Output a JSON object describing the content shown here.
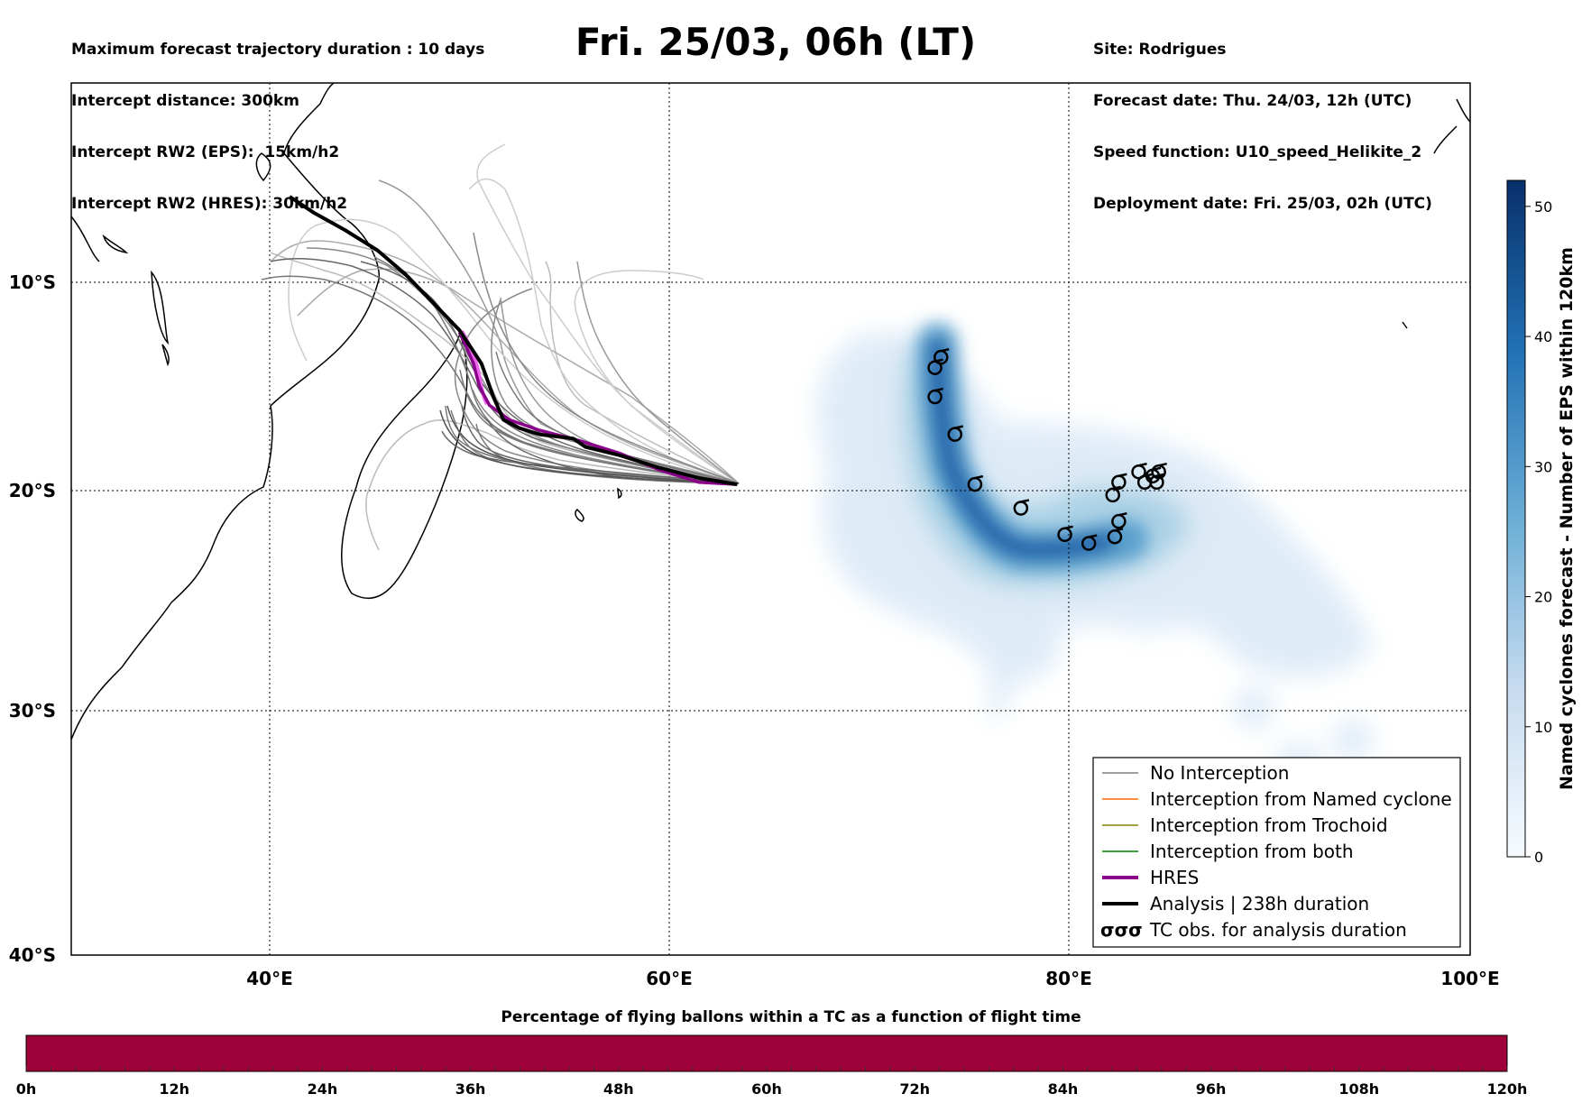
{
  "header_left": [
    "Maximum forecast trajectory duration : 10 days",
    "Intercept distance: 300km",
    "Intercept RW2 (EPS):  15km/h2",
    "Intercept RW2 (HRES): 30km/h2"
  ],
  "header_right": [
    "Site: Rodrigues",
    "Forecast date: Thu. 24/03, 12h (UTC)",
    "Speed function: U10_speed_Helikite_2",
    "Deployment date: Fri. 25/03, 02h (UTC)"
  ],
  "title": "Fri. 25/03, 06h (LT)",
  "map": {
    "lon_range": [
      30,
      100
    ],
    "lat_range": [
      -40,
      0
    ],
    "lon_ticks": [
      "40°E",
      "60°E",
      "80°E",
      "100°E"
    ],
    "lat_ticks": [
      "10°S",
      "20°S",
      "30°S",
      "40°S"
    ],
    "grid": true,
    "site": {
      "name": "Rodrigues",
      "lon": 63.4,
      "lat": -19.7
    },
    "tc_obs_points": [
      {
        "lon": 73.6,
        "lat": -13.6
      },
      {
        "lon": 73.3,
        "lat": -14.1
      },
      {
        "lon": 73.3,
        "lat": -15.5
      },
      {
        "lon": 74.3,
        "lat": -17.3
      },
      {
        "lon": 75.3,
        "lat": -19.7
      },
      {
        "lon": 77.6,
        "lat": -20.8
      },
      {
        "lon": 79.8,
        "lat": -22.0
      },
      {
        "lon": 81.0,
        "lat": -22.4
      },
      {
        "lon": 82.3,
        "lat": -22.1
      },
      {
        "lon": 82.5,
        "lat": -21.4
      },
      {
        "lon": 82.2,
        "lat": -20.2
      },
      {
        "lon": 82.5,
        "lat": -19.6
      },
      {
        "lon": 83.5,
        "lat": -19.1
      },
      {
        "lon": 83.8,
        "lat": -19.6
      },
      {
        "lon": 84.2,
        "lat": -19.3
      },
      {
        "lon": 84.5,
        "lat": -19.1
      },
      {
        "lon": 84.4,
        "lat": -19.6
      }
    ],
    "analysis_track": [
      [
        63.4,
        -19.7
      ],
      [
        61.5,
        -19.4
      ],
      [
        59.5,
        -18.9
      ],
      [
        57.5,
        -18.3
      ],
      [
        55.8,
        -17.9
      ],
      [
        55.2,
        -17.5
      ],
      [
        53.5,
        -17.3
      ],
      [
        52.5,
        -17.0
      ],
      [
        51.7,
        -16.6
      ],
      [
        51.2,
        -15.5
      ],
      [
        50.6,
        -13.9
      ],
      [
        49.5,
        -12.3
      ],
      [
        48.2,
        -11.0
      ],
      [
        46.8,
        -9.6
      ],
      [
        45.4,
        -8.4
      ],
      [
        43.8,
        -7.4
      ],
      [
        42.2,
        -6.5
      ],
      [
        41.0,
        -5.7
      ]
    ],
    "hres_track": [
      [
        63.4,
        -19.7
      ],
      [
        61.5,
        -19.6
      ],
      [
        59.5,
        -19.0
      ],
      [
        57.5,
        -18.2
      ],
      [
        55.5,
        -17.6
      ],
      [
        53.5,
        -17.1
      ],
      [
        52.0,
        -16.6
      ],
      [
        51.0,
        -15.9
      ],
      [
        50.5,
        -15.0
      ],
      [
        50.2,
        -13.9
      ],
      [
        49.8,
        -13.0
      ],
      [
        49.5,
        -12.4
      ]
    ]
  },
  "colorbar": {
    "label": "Named cyclones forecast - Number of EPS within 120km",
    "range": [
      0,
      52
    ],
    "ticks": [
      "0",
      "10",
      "20",
      "30",
      "40",
      "50"
    ]
  },
  "legend": {
    "placement": "lower-right",
    "entries": [
      {
        "label": "No Interception",
        "color": "#808080"
      },
      {
        "label": "Interception from Named cyclone",
        "color": "#ff6600"
      },
      {
        "label": "Interception from Trochoid",
        "color": "#808000"
      },
      {
        "label": "Interception from both",
        "color": "#008000"
      },
      {
        "label": "HRES",
        "color": "#8b008b"
      },
      {
        "label": "Analysis | 238h duration",
        "color": "#000000"
      },
      {
        "label": "TC obs. for analysis duration",
        "color": "#000000",
        "glyph": "σσσ"
      }
    ]
  },
  "time_bar": {
    "title": "Percentage of flying ballons within a TC as a function of flight time",
    "ticks": [
      "0h",
      "12h",
      "24h",
      "36h",
      "48h",
      "60h",
      "72h",
      "84h",
      "96h",
      "108h",
      "120h"
    ],
    "fill_color": "#9e003a"
  }
}
